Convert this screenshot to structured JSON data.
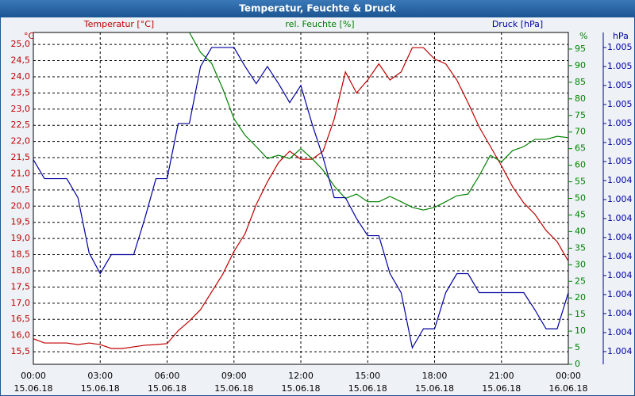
{
  "chart_data": {
    "type": "line",
    "title": "Temperatur, Feuchte & Druck",
    "x": [
      0,
      0.5,
      1,
      1.5,
      2,
      2.5,
      3,
      3.5,
      4,
      4.5,
      5,
      5.5,
      6,
      6.5,
      7,
      7.5,
      8,
      8.5,
      9,
      9.5,
      10,
      10.5,
      11,
      11.5,
      12,
      12.5,
      13,
      13.5,
      14,
      14.5,
      15,
      15.5,
      16,
      16.5,
      17,
      17.5,
      18,
      18.5,
      19,
      19.5,
      20,
      20.5,
      21,
      21.5,
      22,
      22.5,
      23,
      23.5,
      24
    ],
    "xlim": [
      0,
      24
    ],
    "xticks": [
      {
        "value": 0,
        "label": "00:00"
      },
      {
        "value": 3,
        "label": "03:00"
      },
      {
        "value": 6,
        "label": "06:00"
      },
      {
        "value": 9,
        "label": "09:00"
      },
      {
        "value": 12,
        "label": "12:00"
      },
      {
        "value": 15,
        "label": "15:00"
      },
      {
        "value": 18,
        "label": "18:00"
      },
      {
        "value": 21,
        "label": "21:00"
      },
      {
        "value": 24,
        "label": "00:00"
      }
    ],
    "xtick_dates": [
      "15.06.18",
      "15.06.18",
      "15.06.18",
      "15.06.18",
      "15.06.18",
      "15.06.18",
      "15.06.18",
      "15.06.18",
      "16.06.18"
    ],
    "series": [
      {
        "name": "Temperatur [°C]",
        "unit": "°C",
        "color": "#c00000",
        "axis": "y",
        "values": [
          15.9,
          15.77,
          15.77,
          15.77,
          15.72,
          15.77,
          15.72,
          15.6,
          15.6,
          15.65,
          15.7,
          15.72,
          15.75,
          16.15,
          16.45,
          16.8,
          17.35,
          17.9,
          18.6,
          19.15,
          20.05,
          20.75,
          21.35,
          21.7,
          21.45,
          21.45,
          21.7,
          22.7,
          24.15,
          23.5,
          23.9,
          24.4,
          23.9,
          24.15,
          24.9,
          24.9,
          24.55,
          24.4,
          23.9,
          23.2,
          22.45,
          21.85,
          21.25,
          20.6,
          20.1,
          19.75,
          19.25,
          18.9,
          18.3
        ]
      },
      {
        "name": "rel. Feuchte [%]",
        "unit": "%",
        "color": "#008000",
        "axis": "y2",
        "values": [
          null,
          null,
          null,
          null,
          null,
          null,
          null,
          null,
          null,
          null,
          null,
          null,
          null,
          null,
          100,
          94,
          90.7,
          83,
          74,
          69,
          65.6,
          62,
          63,
          62,
          65,
          62,
          58.5,
          53.7,
          50,
          51.3,
          49,
          49,
          50.6,
          49,
          47.3,
          46.5,
          47.3,
          49,
          50.8,
          51.3,
          56.8,
          63,
          61,
          64.4,
          65.6,
          67.8,
          67.8,
          68.7,
          68.3
        ]
      },
      {
        "name": "Druck [hPa]",
        "unit": "hPa",
        "color": "#0000a0",
        "axis": "y3",
        "values": [
          1004.51,
          1004.41,
          1004.41,
          1004.41,
          1004.31,
          1004.02,
          1003.91,
          1004.01,
          1004.01,
          1004.01,
          1004.2,
          1004.41,
          1004.41,
          1004.7,
          1004.7,
          1005.0,
          1005.1,
          1005.1,
          1005.1,
          1005.0,
          1004.91,
          1005.0,
          1004.91,
          1004.81,
          1004.9,
          1004.7,
          1004.52,
          1004.31,
          1004.31,
          1004.2,
          1004.11,
          1004.11,
          1003.91,
          1003.81,
          1003.52,
          1003.62,
          1003.62,
          1003.81,
          1003.91,
          1003.91,
          1003.81,
          1003.81,
          1003.81,
          1003.81,
          1003.81,
          1003.72,
          1003.62,
          1003.62,
          1003.81
        ]
      }
    ],
    "ylim": [
      15.11,
      25.37
    ],
    "yticks": [
      {
        "value": 15.5,
        "label": "15,5"
      },
      {
        "value": 16,
        "label": "16,0"
      },
      {
        "value": 16.5,
        "label": "16,5"
      },
      {
        "value": 17,
        "label": "17,0"
      },
      {
        "value": 17.5,
        "label": "17,5"
      },
      {
        "value": 18,
        "label": "18,0"
      },
      {
        "value": 18.5,
        "label": "18,5"
      },
      {
        "value": 19,
        "label": "19,0"
      },
      {
        "value": 19.5,
        "label": "19,5"
      },
      {
        "value": 20,
        "label": "20,0"
      },
      {
        "value": 20.5,
        "label": "20,5"
      },
      {
        "value": 21,
        "label": "21,0"
      },
      {
        "value": 21.5,
        "label": "21,5"
      },
      {
        "value": 22,
        "label": "22,0"
      },
      {
        "value": 22.5,
        "label": "22,5"
      },
      {
        "value": 23,
        "label": "23,0"
      },
      {
        "value": 23.5,
        "label": "23,5"
      },
      {
        "value": 24,
        "label": "24,0"
      },
      {
        "value": 24.5,
        "label": "24,5"
      },
      {
        "value": 25,
        "label": "25,0"
      }
    ],
    "y2lim": [
      0,
      100
    ],
    "y2ticks": [
      0,
      5,
      10,
      15,
      20,
      25,
      30,
      35,
      40,
      45,
      50,
      55,
      60,
      65,
      70,
      75,
      80,
      85,
      90,
      95
    ],
    "y3lim": [
      1003.433,
      1005.179
    ],
    "y3ticks": [
      {
        "value": 1003.5,
        "label": "1.004"
      },
      {
        "value": 1003.6,
        "label": "1.004"
      },
      {
        "value": 1003.7,
        "label": "1.004"
      },
      {
        "value": 1003.8,
        "label": "1.004"
      },
      {
        "value": 1003.9,
        "label": "1.004"
      },
      {
        "value": 1004.0,
        "label": "1.004"
      },
      {
        "value": 1004.1,
        "label": "1.004"
      },
      {
        "value": 1004.2,
        "label": "1.004"
      },
      {
        "value": 1004.3,
        "label": "1.004"
      },
      {
        "value": 1004.4,
        "label": "1.004"
      },
      {
        "value": 1004.5,
        "label": "1.005"
      },
      {
        "value": 1004.6,
        "label": "1.005"
      },
      {
        "value": 1004.7,
        "label": "1.005"
      },
      {
        "value": 1004.8,
        "label": "1.005"
      },
      {
        "value": 1004.9,
        "label": "1.005"
      },
      {
        "value": 1005.0,
        "label": "1.005"
      },
      {
        "value": 1005.1,
        "label": "1.005"
      }
    ],
    "grid": true
  }
}
